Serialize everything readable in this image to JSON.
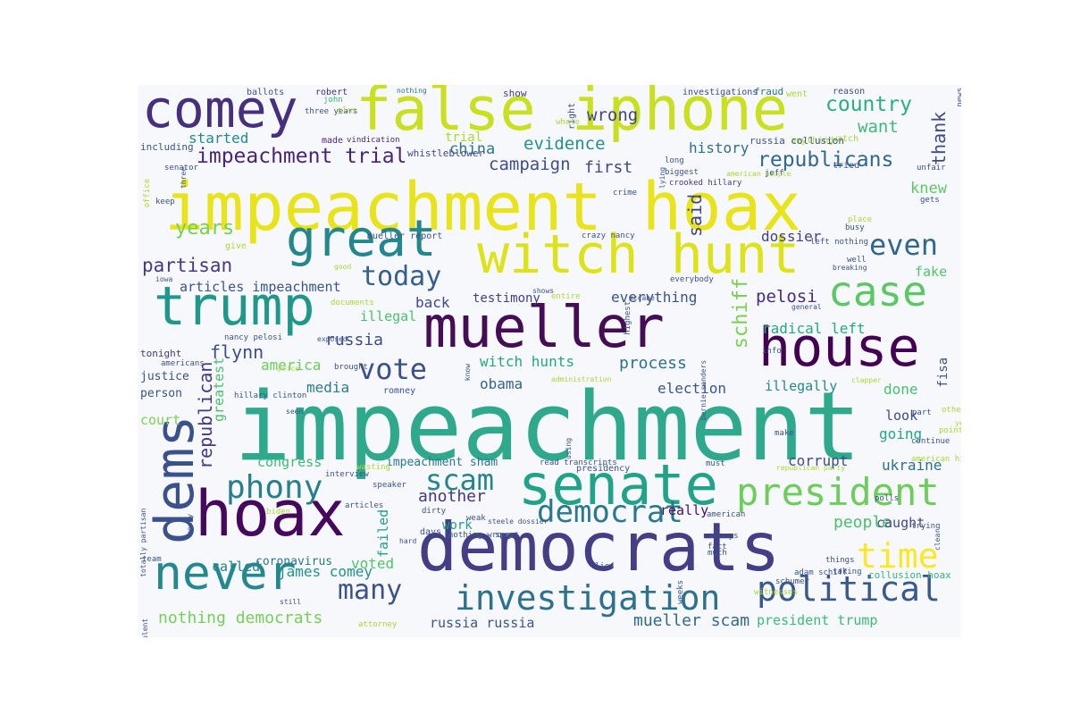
{
  "cloud": {
    "background": "#f7f8fc",
    "colormap": "viridis",
    "words": [
      {
        "text": "impeachment",
        "color": "#2fa98c"
      },
      {
        "text": "impeachment hoax",
        "color": "#e8e419"
      },
      {
        "text": "democrats",
        "color": "#433e85"
      },
      {
        "text": "senate",
        "color": "#20a386"
      },
      {
        "text": "mueller",
        "color": "#440d55"
      },
      {
        "text": "false iphone",
        "color": "#c8e020"
      },
      {
        "text": "witch hunt",
        "color": "#dde318"
      },
      {
        "text": "hoax",
        "color": "#46085c"
      },
      {
        "text": "house",
        "color": "#440154"
      },
      {
        "text": "trump",
        "color": "#1f988b"
      },
      {
        "text": "comey",
        "color": "#46307e"
      },
      {
        "text": "dems",
        "color": "#3b518b"
      },
      {
        "text": "great",
        "color": "#23888e"
      },
      {
        "text": "never",
        "color": "#23898e"
      },
      {
        "text": "president",
        "color": "#6ccd5a"
      },
      {
        "text": "case",
        "color": "#5ac864"
      },
      {
        "text": "investigation",
        "color": "#2c718e"
      },
      {
        "text": "political",
        "color": "#38598c"
      },
      {
        "text": "democrat",
        "color": "#29798e"
      },
      {
        "text": "time",
        "color": "#fde725"
      },
      {
        "text": "phony",
        "color": "#277f8e"
      },
      {
        "text": "vote",
        "color": "#3c508b"
      },
      {
        "text": "scam",
        "color": "#25848e"
      },
      {
        "text": "many",
        "color": "#3b528b"
      },
      {
        "text": "today",
        "color": "#34608d"
      },
      {
        "text": "even",
        "color": "#31678e"
      },
      {
        "text": "country",
        "color": "#29af7f"
      },
      {
        "text": "impeachment trial",
        "color": "#482475"
      },
      {
        "text": "republicans",
        "color": "#31688e"
      },
      {
        "text": "campaign",
        "color": "#3d4e8a"
      },
      {
        "text": "evidence",
        "color": "#21918c"
      },
      {
        "text": "wrong",
        "color": "#414487"
      },
      {
        "text": "want",
        "color": "#3dbc74"
      },
      {
        "text": "thank",
        "color": "#3e4989"
      },
      {
        "text": "started",
        "color": "#238a8d"
      },
      {
        "text": "trial",
        "color": "#a8db34"
      },
      {
        "text": "china",
        "color": "#2a788e"
      },
      {
        "text": "first",
        "color": "#3f4788"
      },
      {
        "text": "history",
        "color": "#2e6f8e"
      },
      {
        "text": "years",
        "color": "#75d054"
      },
      {
        "text": "partisan",
        "color": "#443983"
      },
      {
        "text": "articles impeachment",
        "color": "#3a548c"
      },
      {
        "text": "said",
        "color": "#404688"
      },
      {
        "text": "knew",
        "color": "#5ec962"
      },
      {
        "text": "dossier",
        "color": "#424086"
      },
      {
        "text": "fake",
        "color": "#52c569"
      },
      {
        "text": "testimony",
        "color": "#424186"
      },
      {
        "text": "everything",
        "color": "#3b528b"
      },
      {
        "text": "schiff",
        "color": "#7ad151"
      },
      {
        "text": "pelosi",
        "color": "#472c7a"
      },
      {
        "text": "radical left",
        "color": "#24aa83"
      },
      {
        "text": "back",
        "color": "#3f4889"
      },
      {
        "text": "illegal",
        "color": "#4ac16d"
      },
      {
        "text": "russia",
        "color": "#3e4c8a"
      },
      {
        "text": "flynn",
        "color": "#3e4c8a"
      },
      {
        "text": "republican",
        "color": "#443a83"
      },
      {
        "text": "greatest",
        "color": "#4ac16d"
      },
      {
        "text": "america",
        "color": "#6ccd5a"
      },
      {
        "text": "process",
        "color": "#2c728e"
      },
      {
        "text": "witch hunts",
        "color": "#22a884"
      },
      {
        "text": "obama",
        "color": "#33638d"
      },
      {
        "text": "media",
        "color": "#287c8e"
      },
      {
        "text": "election",
        "color": "#39568c"
      },
      {
        "text": "done",
        "color": "#48c16e"
      },
      {
        "text": "look",
        "color": "#3f4889"
      },
      {
        "text": "going",
        "color": "#22a785"
      },
      {
        "text": "corrupt",
        "color": "#3e4c8a"
      },
      {
        "text": "ukraine",
        "color": "#2d708e"
      },
      {
        "text": "congress",
        "color": "#3dbc74"
      },
      {
        "text": "impeachment sham",
        "color": "#29798e"
      },
      {
        "text": "another",
        "color": "#453781"
      },
      {
        "text": "work",
        "color": "#1e9b8a"
      },
      {
        "text": "really",
        "color": "#471063"
      },
      {
        "text": "people",
        "color": "#4ac16d"
      },
      {
        "text": "caught",
        "color": "#3e4a89"
      },
      {
        "text": "voted",
        "color": "#50c46a"
      },
      {
        "text": "james comey",
        "color": "#20928c"
      },
      {
        "text": "nothing democrats",
        "color": "#75d054"
      },
      {
        "text": "russia russia",
        "color": "#39568c"
      },
      {
        "text": "mueller scam",
        "color": "#31688e"
      },
      {
        "text": "president trump",
        "color": "#3bbb75"
      },
      {
        "text": "collusion hoax",
        "color": "#35b779"
      },
      {
        "text": "coronavirus",
        "color": "#2a788e"
      },
      {
        "text": "called",
        "color": "#25838e"
      },
      {
        "text": "fisa",
        "color": "#3b528b"
      },
      {
        "text": "court",
        "color": "#7ad151"
      },
      {
        "text": "justice",
        "color": "#3b528b"
      },
      {
        "text": "person",
        "color": "#3b528b"
      },
      {
        "text": "tonight",
        "color": "#453882"
      },
      {
        "text": "failed",
        "color": "#1fa088"
      },
      {
        "text": "illegally",
        "color": "#238a8d"
      },
      {
        "text": "ballots",
        "color": "#3b528b"
      },
      {
        "text": "robert",
        "color": "#472c7a"
      },
      {
        "text": "john",
        "color": "#35b779"
      },
      {
        "text": "nothing",
        "color": "#2a788e"
      },
      {
        "text": "three years",
        "color": "#3b528b"
      },
      {
        "text": "plus",
        "color": "#a8db34"
      },
      {
        "text": "vindication",
        "color": "#482878"
      },
      {
        "text": "made",
        "color": "#482878"
      },
      {
        "text": "including",
        "color": "#39568c"
      },
      {
        "text": "senator",
        "color": "#3b528b"
      },
      {
        "text": "whistleblower",
        "color": "#3e4989"
      },
      {
        "text": "show",
        "color": "#443983"
      },
      {
        "text": "right",
        "color": "#3e4989"
      },
      {
        "text": "whole",
        "color": "#a8db34"
      },
      {
        "text": "investigations",
        "color": "#3e4989"
      },
      {
        "text": "fraud",
        "color": "#2c728e"
      },
      {
        "text": "went",
        "color": "#a8db34"
      },
      {
        "text": "reason",
        "color": "#3b528b"
      },
      {
        "text": "watch",
        "color": "#a8db34"
      },
      {
        "text": "anything",
        "color": "#a8db34"
      },
      {
        "text": "russia collusion",
        "color": "#3b528b"
      },
      {
        "text": "tried",
        "color": "#3b528b"
      },
      {
        "text": "news",
        "color": "#3b528b"
      },
      {
        "text": "unfair",
        "color": "#3b528b"
      },
      {
        "text": "long",
        "color": "#3b528b"
      },
      {
        "text": "biggest",
        "color": "#3b528b"
      },
      {
        "text": "crooked hillary",
        "color": "#443983"
      },
      {
        "text": "american people",
        "color": "#a8db34"
      },
      {
        "text": "jeff",
        "color": "#3b528b"
      },
      {
        "text": "lying",
        "color": "#3b528b"
      },
      {
        "text": "crime",
        "color": "#3b528b"
      },
      {
        "text": "gets",
        "color": "#3b528b"
      },
      {
        "text": "busy",
        "color": "#3b528b"
      },
      {
        "text": "place",
        "color": "#a8db34"
      },
      {
        "text": "left nothing",
        "color": "#3b528b"
      },
      {
        "text": "crazy nancy",
        "color": "#3b528b"
      },
      {
        "text": "mueller report",
        "color": "#3b528b"
      },
      {
        "text": "give",
        "color": "#a8db34"
      },
      {
        "text": "office",
        "color": "#a8db34"
      },
      {
        "text": "keep",
        "color": "#3b528b"
      },
      {
        "text": "three",
        "color": "#3b528b"
      },
      {
        "text": "good",
        "color": "#a8db34"
      },
      {
        "text": "iowa",
        "color": "#3b528b"
      },
      {
        "text": "shows",
        "color": "#3b528b"
      },
      {
        "text": "entire",
        "color": "#a8db34"
      },
      {
        "text": "mccabe",
        "color": "#3b528b"
      },
      {
        "text": "highest",
        "color": "#3b528b"
      },
      {
        "text": "breaking",
        "color": "#3b528b"
      },
      {
        "text": "well",
        "color": "#3b528b"
      },
      {
        "text": "everybody",
        "color": "#3b528b"
      },
      {
        "text": "general",
        "color": "#3b528b"
      },
      {
        "text": "documents",
        "color": "#a8db34"
      },
      {
        "text": "nancy pelosi",
        "color": "#3b528b"
      },
      {
        "text": "exposed",
        "color": "#3b528b"
      },
      {
        "text": "americans",
        "color": "#3b528b"
      },
      {
        "text": "price",
        "color": "#a8db34"
      },
      {
        "text": "brought",
        "color": "#3b528b"
      },
      {
        "text": "know",
        "color": "#3b528b"
      },
      {
        "text": "administration",
        "color": "#a8db34"
      },
      {
        "text": "clapper",
        "color": "#a8db34"
      },
      {
        "text": "hillary clinton",
        "color": "#3b528b"
      },
      {
        "text": "romney",
        "color": "#3b528b"
      },
      {
        "text": "bernie sanders",
        "color": "#3b528b"
      },
      {
        "text": "info",
        "color": "#3b528b"
      },
      {
        "text": "part",
        "color": "#3b528b"
      },
      {
        "text": "others",
        "color": "#a8db34"
      },
      {
        "text": "year",
        "color": "#a8db34"
      },
      {
        "text": "seen",
        "color": "#3b528b"
      },
      {
        "text": "using",
        "color": "#3b528b"
      },
      {
        "text": "make",
        "color": "#3b528b"
      },
      {
        "text": "continue",
        "color": "#3b528b"
      },
      {
        "text": "points",
        "color": "#a8db34"
      },
      {
        "text": "american history",
        "color": "#a8db34"
      },
      {
        "text": "totally partisan",
        "color": "#3b528b"
      },
      {
        "text": "money",
        "color": "#3b528b"
      },
      {
        "text": "interview",
        "color": "#3b528b"
      },
      {
        "text": "wasting",
        "color": "#a8db34"
      },
      {
        "text": "speaker",
        "color": "#3b528b"
      },
      {
        "text": "read transcripts",
        "color": "#3b528b"
      },
      {
        "text": "presidency",
        "color": "#3b528b"
      },
      {
        "text": "must",
        "color": "#3b528b"
      },
      {
        "text": "republican party",
        "color": "#a8db34"
      },
      {
        "text": "polls",
        "color": "#3b528b"
      },
      {
        "text": "articles",
        "color": "#3b528b"
      },
      {
        "text": "biden",
        "color": "#a8db34"
      },
      {
        "text": "dirty",
        "color": "#3b528b"
      },
      {
        "text": "hard",
        "color": "#3b528b"
      },
      {
        "text": "days",
        "color": "#3b528b"
      },
      {
        "text": "weak",
        "color": "#3b528b"
      },
      {
        "text": "steele dossier",
        "color": "#3b528b"
      },
      {
        "text": "american",
        "color": "#3b528b"
      },
      {
        "text": "nothing wrong",
        "color": "#3b528b"
      },
      {
        "text": "spent",
        "color": "#3b528b"
      },
      {
        "text": "always",
        "color": "#3b528b"
      },
      {
        "text": "fact",
        "color": "#3b528b"
      },
      {
        "text": "much",
        "color": "#3b528b"
      },
      {
        "text": "trying",
        "color": "#3b528b"
      },
      {
        "text": "clear",
        "color": "#3b528b"
      },
      {
        "text": "team",
        "color": "#3b528b"
      },
      {
        "text": "lies",
        "color": "#3b528b"
      },
      {
        "text": "things",
        "color": "#3b528b"
      },
      {
        "text": "taking",
        "color": "#3b528b"
      },
      {
        "text": "schumer",
        "color": "#3b528b"
      },
      {
        "text": "adam schiff",
        "color": "#3b528b"
      },
      {
        "text": "weeks",
        "color": "#3b528b"
      },
      {
        "text": "witnesses",
        "color": "#a8db34"
      },
      {
        "text": "fraudulent",
        "color": "#3b528b"
      },
      {
        "text": "still",
        "color": "#3b528b"
      },
      {
        "text": "attorney",
        "color": "#a8db34"
      }
    ]
  }
}
